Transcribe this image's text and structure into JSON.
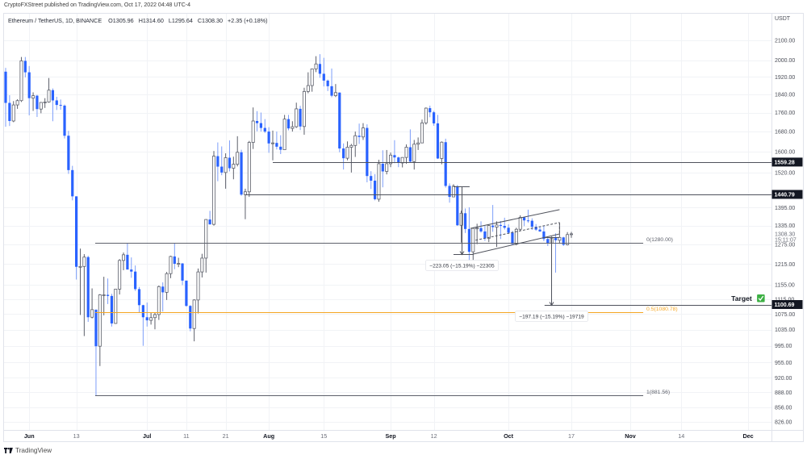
{
  "header": {
    "publisher_line": "CryptoFXStreet published on TradingView.com, Oct 17, 2022 04:48 UTC-4"
  },
  "legend": {
    "symbol": "Ethereum / TetherUS, 1D, BINANCE",
    "open": "O1305.96",
    "high": "H1314.60",
    "low": "L1295.64",
    "close": "C1308.30",
    "change": "+2.35 (+0.18%)"
  },
  "price_axis": {
    "currency": "USDT",
    "last_price": "1308.30",
    "countdown": "15:11:07"
  },
  "footer": {
    "brand": "TradingView",
    "logo_icon": "tradingview-logo-icon"
  },
  "colors": {
    "bear_body": "#2962ff",
    "bear_wick": "#7d9ef9",
    "bull_body": "#ffffff",
    "bull_border": "#5d606b",
    "bull_wick": "#5d606b",
    "drawing": "#4f525c",
    "fib_mid": "#f5a623",
    "grid": "#f1f3f6",
    "frame": "#e0e3eb",
    "axis_text": "#4a4d57",
    "axis_text_minor": "#6a6d78",
    "axis_label_box": "#131722",
    "target_check": "#3cb043"
  },
  "chart_data": {
    "type": "candlestick",
    "title": "Ethereum / TetherUS, 1D, BINANCE",
    "xlabel": "",
    "ylabel": "USDT",
    "y_scale": "log",
    "ylim": [
      810,
      2241
    ],
    "xlim": [
      -0.41,
      194.95
    ],
    "grid": true,
    "legend_position": "top-left",
    "x_ticks": [
      {
        "label": "Jun",
        "index": 6,
        "major": true
      },
      {
        "label": "13",
        "index": 18,
        "major": false
      },
      {
        "label": "Jul",
        "index": 36,
        "major": true
      },
      {
        "label": "11",
        "index": 46,
        "major": false
      },
      {
        "label": "21",
        "index": 56,
        "major": false
      },
      {
        "label": "Aug",
        "index": 67,
        "major": true
      },
      {
        "label": "15",
        "index": 81,
        "major": false
      },
      {
        "label": "Sep",
        "index": 98,
        "major": true
      },
      {
        "label": "12",
        "index": 109,
        "major": false
      },
      {
        "label": "Oct",
        "index": 128,
        "major": true
      },
      {
        "label": "17",
        "index": 144,
        "major": false
      },
      {
        "label": "Nov",
        "index": 159,
        "major": true
      },
      {
        "label": "14",
        "index": 172,
        "major": false
      },
      {
        "label": "Dec",
        "index": 189,
        "major": true
      }
    ],
    "y_ticks": [
      {
        "value": 2100,
        "label": "2100.00"
      },
      {
        "value": 2000,
        "label": "2000.00"
      },
      {
        "value": 1920,
        "label": "1920.00"
      },
      {
        "value": 1840,
        "label": "1840.00"
      },
      {
        "value": 1760,
        "label": "1760.00"
      },
      {
        "value": 1680,
        "label": "1680.00"
      },
      {
        "value": 1600,
        "label": "1600.00"
      },
      {
        "value": 1520,
        "label": "1520.00"
      },
      {
        "value": 1395,
        "label": "1395.00"
      },
      {
        "value": 1335,
        "label": "1335.00"
      },
      {
        "value": 1275,
        "label": "1275.00"
      },
      {
        "value": 1215,
        "label": "1215.00"
      },
      {
        "value": 1155,
        "label": "1155.00"
      },
      {
        "value": 1115,
        "label": "1115.00"
      },
      {
        "value": 1075,
        "label": "1075.00"
      },
      {
        "value": 1035,
        "label": "1035.00"
      },
      {
        "value": 995,
        "label": "995.00"
      },
      {
        "value": 955,
        "label": "955.00"
      },
      {
        "value": 920,
        "label": "920.00"
      },
      {
        "value": 888,
        "label": "888.00"
      },
      {
        "value": 856,
        "label": "856.00"
      },
      {
        "value": 826,
        "label": "826.00"
      }
    ],
    "ohlc_fields": [
      "open",
      "high",
      "low",
      "close"
    ],
    "ohlc": [
      [
        1945,
        1963,
        1700,
        1802
      ],
      [
        1802,
        1836,
        1703,
        1724
      ],
      [
        1724,
        1810,
        1719,
        1793
      ],
      [
        1793,
        1818,
        1776,
        1812
      ],
      [
        1812,
        2016,
        1806,
        1997
      ],
      [
        1997,
        2016,
        1918,
        1942
      ],
      [
        1942,
        1972,
        1748,
        1823
      ],
      [
        1823,
        1849,
        1767,
        1834
      ],
      [
        1834,
        1838,
        1741,
        1775
      ],
      [
        1775,
        1806,
        1757,
        1804
      ],
      [
        1804,
        1823,
        1780,
        1806
      ],
      [
        1806,
        1915,
        1803,
        1859
      ],
      [
        1859,
        1867,
        1723,
        1813
      ],
      [
        1813,
        1829,
        1771,
        1793
      ],
      [
        1793,
        1817,
        1772,
        1790
      ],
      [
        1790,
        1795,
        1652,
        1663
      ],
      [
        1663,
        1683,
        1515,
        1529
      ],
      [
        1529,
        1545,
        1420,
        1434
      ],
      [
        1434,
        1434,
        1170,
        1207
      ],
      [
        1207,
        1262,
        1073,
        1208
      ],
      [
        1208,
        1245,
        1019,
        1236
      ],
      [
        1236,
        1240,
        1055,
        1067
      ],
      [
        1067,
        1145,
        1064,
        1087
      ],
      [
        1087,
        1087,
        881.56,
        994
      ],
      [
        994,
        1129,
        947,
        1127
      ],
      [
        1127,
        1178,
        1072,
        1127
      ],
      [
        1127,
        1173,
        1102,
        1124
      ],
      [
        1124,
        1130,
        1043,
        1051
      ],
      [
        1051,
        1143,
        1050,
        1143
      ],
      [
        1143,
        1230,
        1128,
        1226
      ],
      [
        1226,
        1250,
        1197,
        1243
      ],
      [
        1243,
        1280,
        1199,
        1199
      ],
      [
        1199,
        1235,
        1175,
        1193
      ],
      [
        1193,
        1211,
        1138,
        1143
      ],
      [
        1143,
        1149,
        1080,
        1099
      ],
      [
        1099,
        1100,
        995,
        1067
      ],
      [
        1067,
        1106,
        1043,
        1059
      ],
      [
        1059,
        1079,
        1048,
        1066
      ],
      [
        1066,
        1079,
        1036,
        1074
      ],
      [
        1074,
        1153,
        1060,
        1150
      ],
      [
        1150,
        1162,
        1082,
        1134
      ],
      [
        1134,
        1192,
        1113,
        1187
      ],
      [
        1187,
        1240,
        1174,
        1238
      ],
      [
        1238,
        1280,
        1200,
        1216
      ],
      [
        1216,
        1234,
        1206,
        1217
      ],
      [
        1217,
        1218,
        1154,
        1167
      ],
      [
        1167,
        1167,
        1095,
        1097
      ],
      [
        1097,
        1099,
        1031,
        1038
      ],
      [
        1038,
        1115,
        1006,
        1113
      ],
      [
        1113,
        1202,
        1077,
        1192
      ],
      [
        1192,
        1246,
        1176,
        1233
      ],
      [
        1233,
        1356,
        1190,
        1355
      ],
      [
        1355,
        1384,
        1338,
        1339
      ],
      [
        1339,
        1602,
        1335,
        1582
      ],
      [
        1582,
        1636,
        1488,
        1542
      ],
      [
        1542,
        1620,
        1510,
        1520
      ],
      [
        1520,
        1593,
        1461,
        1576
      ],
      [
        1576,
        1644,
        1524,
        1536
      ],
      [
        1536,
        1580,
        1495,
        1551
      ],
      [
        1551,
        1661,
        1543,
        1597
      ],
      [
        1597,
        1607,
        1436,
        1440
      ],
      [
        1440,
        1461,
        1356,
        1450
      ],
      [
        1450,
        1642,
        1432,
        1636
      ],
      [
        1636,
        1782,
        1610,
        1724
      ],
      [
        1724,
        1766,
        1681,
        1715
      ],
      [
        1715,
        1760,
        1680,
        1695
      ],
      [
        1695,
        1732,
        1674,
        1680
      ],
      [
        1680,
        1698,
        1595,
        1632
      ],
      [
        1632,
        1684,
        1566,
        1634
      ],
      [
        1634,
        1680,
        1608,
        1619
      ],
      [
        1619,
        1665,
        1590,
        1607
      ],
      [
        1607,
        1750,
        1606,
        1732
      ],
      [
        1732,
        1750,
        1685,
        1693
      ],
      [
        1693,
        1723,
        1680,
        1700
      ],
      [
        1700,
        1803,
        1695,
        1776
      ],
      [
        1776,
        1789,
        1686,
        1701
      ],
      [
        1701,
        1870,
        1667,
        1853
      ],
      [
        1853,
        1942,
        1845,
        1880
      ],
      [
        1880,
        1960,
        1852,
        1958
      ],
      [
        1958,
        2020,
        1943,
        1982
      ],
      [
        1982,
        2030,
        1916,
        1935
      ],
      [
        1935,
        2012,
        1876,
        1903
      ],
      [
        1903,
        1908,
        1855,
        1877
      ],
      [
        1877,
        1960,
        1827,
        1834
      ],
      [
        1834,
        1887,
        1828,
        1848
      ],
      [
        1848,
        1849,
        1597,
        1612
      ],
      [
        1612,
        1632,
        1531,
        1574
      ],
      [
        1574,
        1640,
        1566,
        1617
      ],
      [
        1617,
        1630,
        1520,
        1624
      ],
      [
        1624,
        1680,
        1579,
        1663
      ],
      [
        1663,
        1713,
        1630,
        1658
      ],
      [
        1658,
        1715,
        1646,
        1695
      ],
      [
        1695,
        1710,
        1484,
        1507
      ],
      [
        1507,
        1525,
        1460,
        1490
      ],
      [
        1490,
        1514,
        1420,
        1424
      ],
      [
        1424,
        1568,
        1415,
        1553
      ],
      [
        1553,
        1605,
        1466,
        1524
      ],
      [
        1524,
        1606,
        1513,
        1553
      ],
      [
        1553,
        1596,
        1540,
        1586
      ],
      [
        1586,
        1645,
        1555,
        1577
      ],
      [
        1577,
        1580,
        1540,
        1556
      ],
      [
        1556,
        1578,
        1539,
        1577
      ],
      [
        1577,
        1628,
        1553,
        1617
      ],
      [
        1617,
        1689,
        1557,
        1561
      ],
      [
        1561,
        1646,
        1531,
        1629
      ],
      [
        1629,
        1656,
        1606,
        1634
      ],
      [
        1634,
        1730,
        1634,
        1716
      ],
      [
        1716,
        1782,
        1709,
        1779
      ],
      [
        1779,
        1790,
        1740,
        1761
      ],
      [
        1761,
        1767,
        1704,
        1714
      ],
      [
        1714,
        1750,
        1571,
        1573
      ],
      [
        1573,
        1640,
        1551,
        1637
      ],
      [
        1637,
        1651,
        1465,
        1471
      ],
      [
        1471,
        1480,
        1412,
        1432
      ],
      [
        1432,
        1477,
        1431,
        1470
      ],
      [
        1470,
        1474,
        1334,
        1336
      ],
      [
        1336,
        1385,
        1281,
        1376
      ],
      [
        1376,
        1392,
        1311,
        1324
      ],
      [
        1324,
        1396,
        1220,
        1252
      ],
      [
        1252,
        1328,
        1225,
        1326
      ],
      [
        1326,
        1341,
        1276,
        1327
      ],
      [
        1327,
        1349,
        1312,
        1316
      ],
      [
        1316,
        1334,
        1286,
        1294
      ],
      [
        1294,
        1337,
        1282,
        1335
      ],
      [
        1335,
        1404,
        1315,
        1330
      ],
      [
        1330,
        1349,
        1267,
        1337
      ],
      [
        1337,
        1350,
        1292,
        1334
      ],
      [
        1334,
        1361,
        1322,
        1328
      ],
      [
        1328,
        1339,
        1308,
        1312
      ],
      [
        1312,
        1318,
        1276,
        1276
      ],
      [
        1276,
        1328,
        1272,
        1323
      ],
      [
        1323,
        1369,
        1319,
        1362
      ],
      [
        1362,
        1364,
        1333,
        1352
      ],
      [
        1352,
        1388,
        1344,
        1351
      ],
      [
        1351,
        1359,
        1321,
        1331
      ],
      [
        1331,
        1340,
        1318,
        1322
      ],
      [
        1322,
        1331,
        1315,
        1316
      ],
      [
        1316,
        1334,
        1285,
        1292
      ],
      [
        1292,
        1300,
        1270,
        1279
      ],
      [
        1279,
        1300,
        1279,
        1295
      ],
      [
        1295,
        1310,
        1190,
        1288
      ],
      [
        1288,
        1341,
        1277,
        1297
      ],
      [
        1297,
        1299,
        1270,
        1274
      ],
      [
        1274,
        1314,
        1272,
        1306
      ],
      [
        1305.96,
        1314.6,
        1295.64,
        1308.3
      ]
    ],
    "annotations": {
      "horizontal_rays": [
        {
          "id": "resistance-1559",
          "price": 1559.28,
          "from_index": 68,
          "label": "1559.28"
        },
        {
          "id": "resistance-1440",
          "price": 1440.79,
          "from_index": 61,
          "label": "1440.79"
        },
        {
          "id": "target-1100",
          "price": 1100.69,
          "from_index": 137.2,
          "label": "1100.69"
        }
      ],
      "fib_retracement": {
        "from_index": 22.8,
        "to_index": 162.3,
        "levels": [
          {
            "ratio": 0,
            "price": 1280.0,
            "label": "0(1280.00)",
            "color": "#5d606b"
          },
          {
            "ratio": 0.5,
            "price": 1080.78,
            "label": "0.5(1080.78)",
            "color": "#f5a623"
          },
          {
            "ratio": 1,
            "price": 881.56,
            "label": "1(881.56)",
            "color": "#5d606b"
          }
        ]
      },
      "measurements": [
        {
          "id": "measure-flagpole",
          "index": 116,
          "from_price": 1468.4,
          "to_price": 1245.35,
          "tick_from": 114.0,
          "tick_to_top": 118.1,
          "tick_to_bottom": 119.1,
          "label": "−223.05 (−15.19%) −22305"
        },
        {
          "id": "measure-projection",
          "index": 138.9,
          "from_price": 1297.88,
          "to_price": 1100.69,
          "tick_from": 137.2,
          "tick_to_top": 140.9,
          "tick_to_bottom": 140.9,
          "label": "−197.19 (−15.19%) −19719"
        }
      ],
      "channel": [
        {
          "id": "channel-upper",
          "style": "solid",
          "points": [
            [
              118.3,
              1326
            ],
            [
              141,
              1388
            ]
          ]
        },
        {
          "id": "channel-lower",
          "style": "solid",
          "points": [
            [
              119,
              1245
            ],
            [
              141,
              1308
            ]
          ]
        },
        {
          "id": "channel-mid",
          "style": "dashed",
          "points": [
            [
              119.6,
              1288
            ],
            [
              141,
              1345
            ]
          ]
        },
        {
          "id": "channel-edge",
          "style": "dashed",
          "points": [
            [
              141,
              1345
            ],
            [
              141,
              1308
            ]
          ]
        }
      ],
      "text_labels": [
        {
          "id": "target",
          "text": "Target",
          "index": 184.7,
          "price": 1117,
          "icon": "check-box-icon",
          "icon_glyph": "✓"
        }
      ]
    }
  }
}
